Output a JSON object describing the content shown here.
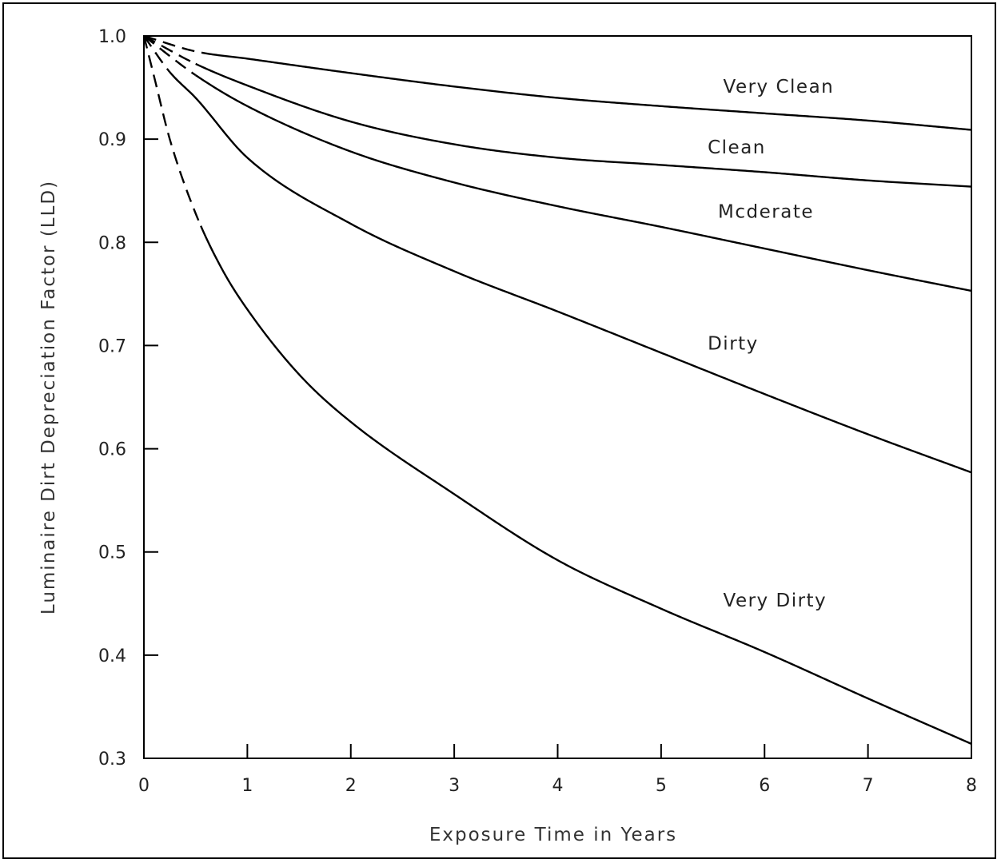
{
  "chart_data": {
    "type": "line",
    "xlabel": "Exposure Time in Years",
    "ylabel": "Luminaire Dirt Depreciation Factor (LLD)",
    "xlim": [
      0,
      8
    ],
    "ylim": [
      0.3,
      1.0
    ],
    "x_ticks": [
      "0",
      "1",
      "2",
      "3",
      "4",
      "5",
      "6",
      "7",
      "8"
    ],
    "y_ticks": [
      "1.0",
      "0.9",
      "0.8",
      "0.7",
      "0.6",
      "0.5",
      "0.4",
      "0.3"
    ],
    "grid": false,
    "line_color": "#000000",
    "series": [
      {
        "name": "Very Clean",
        "x": [
          0,
          0.5,
          1,
          2,
          3,
          4,
          5,
          6,
          7,
          8
        ],
        "y": [
          1.0,
          0.985,
          0.978,
          0.964,
          0.951,
          0.94,
          0.932,
          0.925,
          0.918,
          0.909
        ],
        "dashed_until": 0.6
      },
      {
        "name": "Clean",
        "x": [
          0,
          0.5,
          1,
          2,
          3,
          4,
          5,
          6,
          7,
          8
        ],
        "y": [
          1.0,
          0.973,
          0.952,
          0.917,
          0.895,
          0.882,
          0.875,
          0.868,
          0.86,
          0.854
        ],
        "dashed_until": 0.5
      },
      {
        "name": "Moderate",
        "x": [
          0,
          0.5,
          1,
          2,
          3,
          4,
          5,
          6,
          7,
          8
        ],
        "y": [
          1.0,
          0.962,
          0.932,
          0.888,
          0.858,
          0.835,
          0.815,
          0.794,
          0.773,
          0.753
        ],
        "dashed_until": 0.5
      },
      {
        "name": "Dirty",
        "x": [
          0,
          0.25,
          0.5,
          1,
          2,
          3,
          4,
          5,
          6,
          7,
          8
        ],
        "y": [
          1.0,
          0.965,
          0.94,
          0.882,
          0.818,
          0.772,
          0.733,
          0.693,
          0.653,
          0.614,
          0.577
        ],
        "dashed_until": 0.25
      },
      {
        "name": "Very Dirty",
        "x": [
          0,
          0.1,
          0.25,
          0.5,
          0.75,
          1,
          1.5,
          2,
          3,
          4,
          5,
          6,
          7,
          8
        ],
        "y": [
          1.0,
          0.96,
          0.9,
          0.828,
          0.775,
          0.735,
          0.672,
          0.626,
          0.556,
          0.492,
          0.445,
          0.403,
          0.358,
          0.314
        ],
        "dashed_until": 0.55
      }
    ],
    "annotations": [
      {
        "text": "Very Clean",
        "x": 5.6,
        "y": 0.945
      },
      {
        "text": "Clean",
        "x": 5.45,
        "y": 0.886
      },
      {
        "text": "Mcderate",
        "x": 5.55,
        "y": 0.824
      },
      {
        "text": "Dirty",
        "x": 5.45,
        "y": 0.696
      },
      {
        "text": "Very Dirty",
        "x": 5.6,
        "y": 0.447
      }
    ]
  }
}
